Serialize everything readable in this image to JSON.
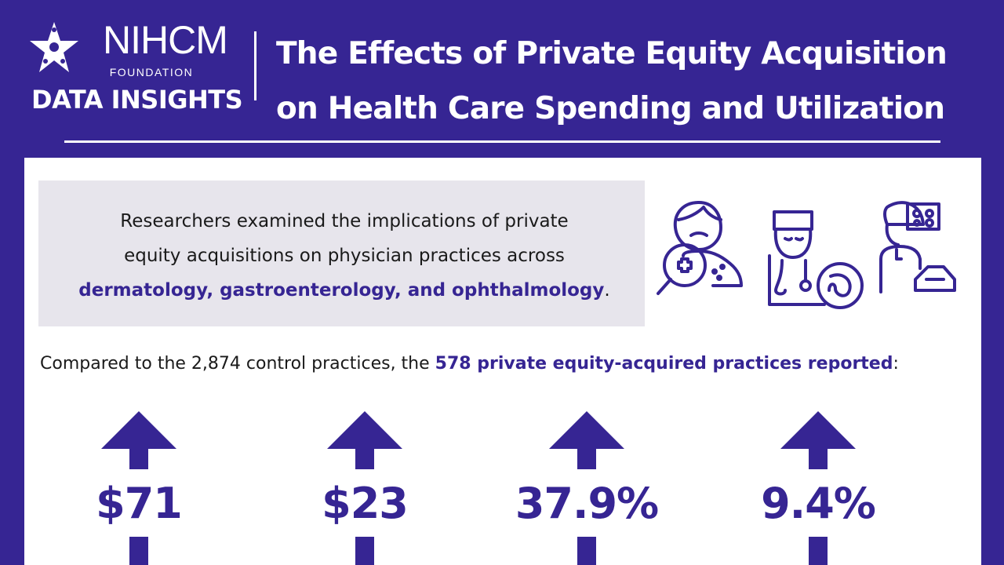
{
  "brand": {
    "name": "NIHCM",
    "subtitle": "FOUNDATION",
    "tagline": "DATA INSIGHTS"
  },
  "title": {
    "line1": "The Effects of Private Equity Acquisition",
    "line2": "on Health Care Spending and Utilization"
  },
  "intro": {
    "line1": "Researchers examined the implications of private",
    "line2": "equity acquisitions on physician practices across",
    "highlight": "dermatology, gastroenterology, and ophthalmology",
    "end": "."
  },
  "compare": {
    "prefix": "Compared to the 2,874 control practices, the ",
    "highlight": "578 private equity-acquired practices reported",
    "suffix": ":"
  },
  "stats": [
    {
      "value": "$71"
    },
    {
      "value": "$23"
    },
    {
      "value": "37.9%"
    },
    {
      "value": "9.4%"
    }
  ],
  "colors": {
    "brand_purple": "#362593",
    "panel_white": "#ffffff",
    "intro_gray": "#e7e5ec"
  },
  "icons": {
    "logo": "star-logo-icon",
    "dermatology": "dermatology-magnifier-icon",
    "gastroenterology": "doctor-stomach-icon",
    "ophthalmology": "eye-exam-icon",
    "stat_arrow": "arrow-up-icon"
  }
}
